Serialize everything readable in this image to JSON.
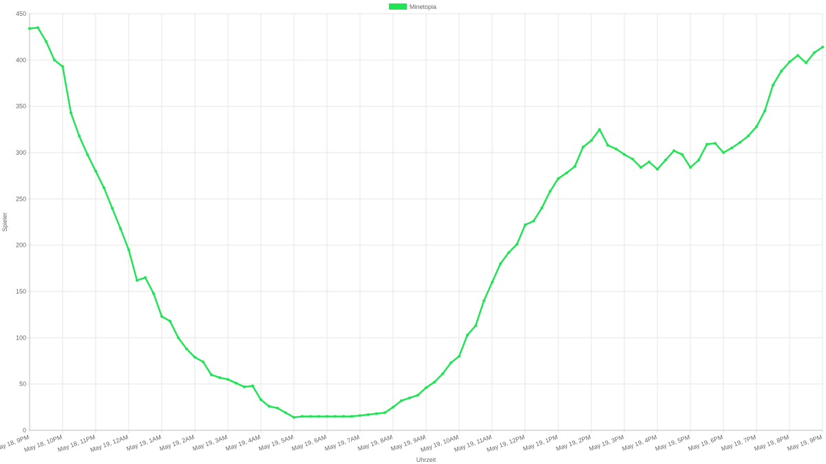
{
  "chart_data": {
    "type": "line",
    "x_label": "Uhrzeit",
    "y_label": "Spieler",
    "categories": [
      "May 18, 9PM",
      null,
      null,
      null,
      "May 18, 10PM",
      null,
      null,
      null,
      "May 18, 11PM",
      null,
      null,
      null,
      "May 19, 12AM",
      null,
      null,
      null,
      "May 19, 1AM",
      null,
      null,
      null,
      "May 19, 2AM",
      null,
      null,
      null,
      "May 19, 3AM",
      null,
      null,
      null,
      "May 19, 4AM",
      null,
      null,
      null,
      "May 19, 5AM",
      null,
      null,
      null,
      "May 19, 6AM",
      null,
      null,
      null,
      "May 19, 7AM",
      null,
      null,
      null,
      "May 19, 8AM",
      null,
      null,
      null,
      "May 19, 9AM",
      null,
      null,
      null,
      "May 19, 10AM",
      null,
      null,
      null,
      "May 19, 11AM",
      null,
      null,
      null,
      "May 19, 12PM",
      null,
      null,
      null,
      "May 19, 1PM",
      null,
      null,
      null,
      "May 19, 2PM",
      null,
      null,
      null,
      "May 19, 3PM",
      null,
      null,
      null,
      "May 19, 4PM",
      null,
      null,
      null,
      "May 19, 5PM",
      null,
      null,
      null,
      "May 19, 6PM",
      null,
      null,
      null,
      "May 19, 7PM",
      null,
      null,
      null,
      "May 19, 8PM",
      null,
      null,
      null,
      "May 19, 9PM"
    ],
    "series": [
      {
        "name": "Minetopia",
        "color": "#1fe454",
        "values": [
          434,
          435,
          420,
          400,
          393,
          343,
          318,
          298,
          280,
          262,
          240,
          218,
          195,
          162,
          165,
          148,
          123,
          118,
          100,
          88,
          79,
          74,
          60,
          57,
          55,
          51,
          47,
          48,
          33,
          26,
          24,
          19,
          14,
          15,
          15,
          15,
          15,
          15,
          15,
          15,
          16,
          17,
          18,
          19,
          25,
          32,
          35,
          38,
          46,
          52,
          61,
          73,
          80,
          103,
          113,
          140,
          160,
          180,
          192,
          201,
          222,
          226,
          240,
          258,
          272,
          278,
          285,
          306,
          313,
          325,
          308,
          304,
          298,
          293,
          284,
          290,
          282,
          292,
          302,
          298,
          284,
          292,
          309,
          310,
          300,
          305,
          311,
          318,
          328,
          345,
          373,
          388,
          398,
          405,
          397,
          408,
          414
        ]
      }
    ],
    "ylim": [
      0,
      450
    ],
    "yticks": [
      0,
      50,
      100,
      150,
      200,
      250,
      300,
      350,
      400,
      450
    ],
    "grid": true,
    "legend": "top"
  }
}
